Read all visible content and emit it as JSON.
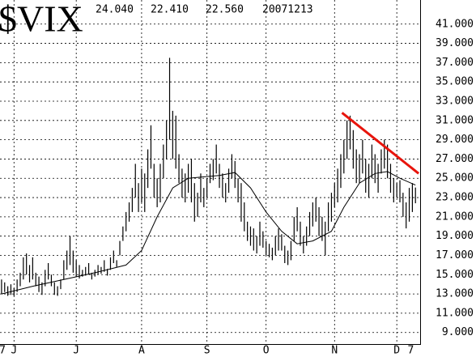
{
  "chart_data": {
    "type": "ohlc",
    "title": "$VIX",
    "header": [
      "24.040",
      "22.410",
      "22.560",
      "20071213"
    ],
    "xlim": [
      -0.5,
      134.5
    ],
    "ylim": [
      7.8,
      43.5
    ],
    "grid": true,
    "color": "#000000",
    "yticks": [
      {
        "value": 9,
        "label": "9.000"
      },
      {
        "value": 11,
        "label": "11.000"
      },
      {
        "value": 13,
        "label": "13.000"
      },
      {
        "value": 15,
        "label": "15.000"
      },
      {
        "value": 17,
        "label": "17.000"
      },
      {
        "value": 19,
        "label": "19.000"
      },
      {
        "value": 21,
        "label": "21.000"
      },
      {
        "value": 23,
        "label": "23.000"
      },
      {
        "value": 25,
        "label": "25.000"
      },
      {
        "value": 27,
        "label": "27.000"
      },
      {
        "value": 29,
        "label": "29.000"
      },
      {
        "value": 31,
        "label": "31.000"
      },
      {
        "value": 33,
        "label": "33.000"
      },
      {
        "value": 35,
        "label": "35.000"
      },
      {
        "value": 37,
        "label": "37.000"
      },
      {
        "value": 39,
        "label": "39.000"
      },
      {
        "value": 41,
        "label": "41.000"
      }
    ],
    "xticks": [
      {
        "value": 4,
        "label": "J"
      },
      {
        "value": 24,
        "label": "J"
      },
      {
        "value": 45,
        "label": "A"
      },
      {
        "value": 66,
        "label": "S"
      },
      {
        "value": 85,
        "label": "O"
      },
      {
        "value": 107,
        "label": "N"
      },
      {
        "value": 127,
        "label": "D"
      }
    ],
    "year_labels": [
      {
        "value": 0.3,
        "label": "7"
      },
      {
        "value": 131.5,
        "label": "7"
      }
    ],
    "high": [
      14.5,
      14.2,
      13.8,
      14.0,
      13.6,
      14.5,
      15.2,
      16.8,
      17.2,
      16.0,
      16.8,
      15.2,
      14.8,
      14.2,
      15.5,
      16.2,
      15.0,
      14.2,
      13.8,
      14.5,
      16.5,
      17.5,
      19.0,
      17.5,
      16.5,
      16.0,
      15.5,
      15.8,
      16.2,
      15.2,
      15.5,
      16.0,
      15.8,
      16.5,
      15.6,
      16.8,
      17.5,
      16.5,
      18.5,
      20.0,
      21.5,
      22.5,
      24.0,
      26.5,
      24.5,
      26.0,
      25.5,
      28.0,
      30.5,
      26.5,
      25.0,
      26.5,
      28.5,
      31.0,
      37.5,
      32.0,
      31.5,
      27.5,
      26.0,
      25.5,
      26.5,
      27.0,
      24.5,
      23.5,
      25.5,
      24.0,
      25.0,
      26.5,
      27.0,
      28.5,
      26.5,
      25.5,
      24.5,
      26.0,
      27.5,
      26.8,
      25.0,
      24.5,
      22.5,
      20.5,
      20.0,
      19.8,
      19.0,
      20.5,
      19.5,
      18.5,
      18.2,
      17.8,
      19.0,
      19.8,
      19.2,
      18.0,
      17.5,
      18.5,
      21.0,
      22.0,
      20.5,
      19.0,
      20.0,
      21.5,
      22.5,
      23.0,
      22.0,
      21.0,
      20.5,
      22.5,
      23.5,
      24.5,
      26.0,
      27.5,
      29.0,
      31.0,
      31.5,
      30.0,
      28.0,
      27.5,
      29.0,
      27.0,
      26.5,
      28.5,
      27.5,
      26.5,
      28.0,
      29.0,
      28.5,
      26.5,
      25.0,
      24.5,
      24.8,
      23.5,
      22.5,
      24.0,
      24.5,
      24.04
    ],
    "low": [
      13.0,
      13.2,
      12.8,
      12.9,
      12.8,
      13.2,
      13.8,
      14.5,
      15.0,
      14.2,
      14.5,
      13.8,
      13.2,
      12.9,
      13.8,
      14.5,
      13.8,
      12.9,
      12.8,
      13.5,
      14.5,
      15.5,
      16.0,
      15.2,
      14.8,
      14.6,
      14.8,
      14.9,
      15.0,
      14.5,
      14.8,
      15.0,
      15.1,
      15.3,
      14.9,
      15.5,
      16.2,
      15.8,
      17.0,
      18.5,
      19.5,
      20.5,
      21.5,
      23.0,
      21.5,
      22.5,
      21.5,
      24.0,
      26.0,
      23.0,
      22.0,
      22.5,
      25.0,
      27.0,
      29.0,
      27.0,
      26.0,
      24.5,
      23.0,
      22.5,
      23.5,
      22.5,
      20.5,
      21.0,
      22.5,
      22.0,
      23.0,
      24.5,
      24.8,
      25.5,
      24.0,
      23.0,
      22.5,
      23.5,
      25.0,
      24.0,
      22.5,
      20.5,
      19.5,
      18.5,
      18.0,
      17.5,
      17.2,
      18.0,
      17.8,
      17.0,
      16.8,
      16.5,
      17.0,
      17.5,
      17.5,
      16.2,
      16.0,
      16.5,
      18.5,
      19.5,
      18.0,
      17.2,
      18.0,
      19.0,
      20.0,
      20.5,
      19.0,
      18.5,
      17.0,
      19.5,
      20.5,
      22.0,
      22.5,
      24.0,
      25.5,
      27.0,
      28.0,
      26.0,
      24.5,
      24.5,
      25.5,
      23.5,
      23.0,
      25.0,
      24.5,
      23.5,
      25.5,
      26.0,
      25.0,
      23.5,
      22.5,
      23.0,
      22.5,
      21.0,
      19.8,
      20.5,
      21.5,
      22.41
    ],
    "ma": {
      "color": "#000000",
      "x": [
        0,
        10,
        20,
        30,
        40,
        45,
        50,
        55,
        60,
        70,
        75,
        80,
        85,
        90,
        95,
        100,
        106,
        110,
        115,
        120,
        124,
        128,
        133
      ],
      "values": [
        13.0,
        13.8,
        14.5,
        15.2,
        16.0,
        17.5,
        21.0,
        24.0,
        25.0,
        25.3,
        25.6,
        24.0,
        21.5,
        19.5,
        18.2,
        18.5,
        19.5,
        22.0,
        24.5,
        25.5,
        25.7,
        25.0,
        24.3
      ]
    },
    "trendline": {
      "color": "#e8140c",
      "x": [
        109.4,
        134
      ],
      "values": [
        31.8,
        25.5
      ]
    }
  }
}
